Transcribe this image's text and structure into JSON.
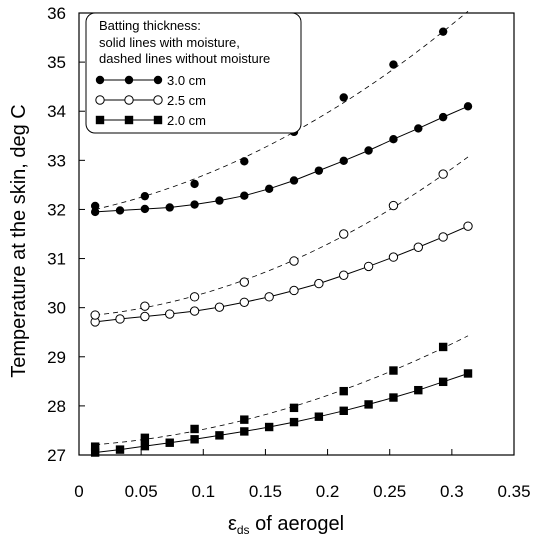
{
  "chart_data": {
    "type": "scatter",
    "xlabel_main": "ε",
    "xlabel_sub": "ds",
    "xlabel_rest": " of aerogel",
    "ylabel": "Temperature  at the skin, deg C",
    "xlim": [
      0,
      0.35
    ],
    "ylim": [
      27,
      36
    ],
    "xticks": [
      0,
      0.05,
      0.1,
      0.15,
      0.2,
      0.25,
      0.3,
      0.35
    ],
    "xtick_labels": [
      "0",
      "0.05",
      "0.1",
      "0.15",
      "0.2",
      "0.25",
      "0.3",
      "0.35"
    ],
    "yticks": [
      27,
      28,
      29,
      30,
      31,
      32,
      33,
      34,
      35,
      36
    ],
    "ytick_labels": [
      "27",
      "28",
      "29",
      "30",
      "31",
      "32",
      "33",
      "34",
      "35",
      "36"
    ],
    "grid": false,
    "legend": {
      "placement": "top-left",
      "title_lines": [
        "Batting thickness:",
        "solid lines with moisture,",
        "dashed lines without moisture"
      ],
      "entries": [
        {
          "label": "3.0 cm",
          "marker": "filled-circle"
        },
        {
          "label": "2.5 cm",
          "marker": "open-circle"
        },
        {
          "label": "2.0 cm",
          "marker": "filled-square"
        }
      ]
    },
    "series": [
      {
        "thickness": "3.0 cm",
        "moisture": true,
        "style": "solid",
        "marker": "filled-circle",
        "x": [
          0.013,
          0.033,
          0.053,
          0.073,
          0.093,
          0.113,
          0.133,
          0.153,
          0.173,
          0.193,
          0.213,
          0.233,
          0.253,
          0.273,
          0.293,
          0.313
        ],
        "y": [
          31.95,
          31.98,
          32.01,
          32.04,
          32.1,
          32.18,
          32.28,
          32.42,
          32.59,
          32.79,
          32.99,
          33.2,
          33.43,
          33.65,
          33.88,
          34.1
        ]
      },
      {
        "thickness": "3.0 cm",
        "moisture": false,
        "style": "dashed",
        "marker": "filled-circle",
        "x": [
          0.013,
          0.053,
          0.093,
          0.133,
          0.173,
          0.213,
          0.253,
          0.293
        ],
        "y": [
          32.07,
          32.27,
          32.52,
          32.98,
          33.58,
          34.28,
          34.95,
          35.62
        ],
        "curve_x": [
          0.013,
          0.313
        ],
        "curve_y": [
          32.07,
          35.95
        ]
      },
      {
        "thickness": "2.5 cm",
        "moisture": true,
        "style": "solid",
        "marker": "open-circle",
        "x": [
          0.013,
          0.033,
          0.053,
          0.073,
          0.093,
          0.113,
          0.133,
          0.153,
          0.173,
          0.193,
          0.213,
          0.233,
          0.253,
          0.273,
          0.293,
          0.313
        ],
        "y": [
          29.71,
          29.77,
          29.82,
          29.87,
          29.93,
          30.01,
          30.11,
          30.22,
          30.35,
          30.49,
          30.66,
          30.84,
          31.03,
          31.23,
          31.44,
          31.66
        ]
      },
      {
        "thickness": "2.5 cm",
        "moisture": false,
        "style": "dashed",
        "marker": "open-circle",
        "x": [
          0.013,
          0.053,
          0.093,
          0.133,
          0.173,
          0.213,
          0.253,
          0.293
        ],
        "y": [
          29.85,
          30.03,
          30.22,
          30.52,
          30.95,
          31.5,
          32.08,
          32.72
        ],
        "curve_x": [
          0.013,
          0.313
        ],
        "curve_y": [
          29.85,
          33.03
        ]
      },
      {
        "thickness": "2.0 cm",
        "moisture": true,
        "style": "solid",
        "marker": "filled-square",
        "x": [
          0.013,
          0.033,
          0.053,
          0.073,
          0.093,
          0.113,
          0.133,
          0.153,
          0.173,
          0.193,
          0.213,
          0.233,
          0.253,
          0.273,
          0.293,
          0.313
        ],
        "y": [
          27.05,
          27.11,
          27.18,
          27.25,
          27.32,
          27.4,
          27.48,
          27.57,
          27.67,
          27.78,
          27.9,
          28.03,
          28.17,
          28.32,
          28.49,
          28.66
        ]
      },
      {
        "thickness": "2.0 cm",
        "moisture": false,
        "style": "dashed",
        "marker": "filled-square",
        "x": [
          0.013,
          0.053,
          0.093,
          0.133,
          0.173,
          0.213,
          0.253,
          0.293
        ],
        "y": [
          27.17,
          27.35,
          27.53,
          27.72,
          27.96,
          28.3,
          28.72,
          29.2
        ],
        "curve_x": [
          0.013,
          0.313
        ],
        "curve_y": [
          27.17,
          29.43
        ]
      }
    ]
  }
}
